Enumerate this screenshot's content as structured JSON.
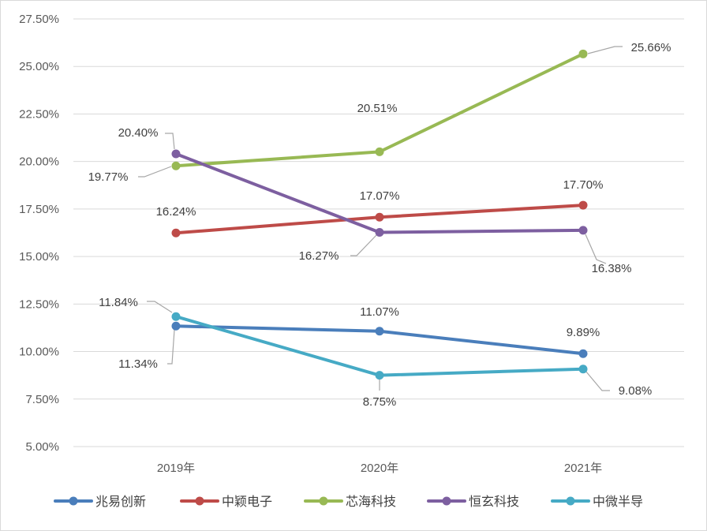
{
  "chart_data": {
    "type": "line",
    "title": "",
    "xlabel": "",
    "ylabel": "",
    "categories": [
      "2019年",
      "2020年",
      "2021年"
    ],
    "ylim": [
      5.0,
      27.5
    ],
    "ytick_values": [
      5.0,
      7.5,
      10.0,
      12.5,
      15.0,
      17.5,
      20.0,
      22.5,
      25.0,
      27.5
    ],
    "ytick_labels": [
      "5.00%",
      "7.50%",
      "10.00%",
      "12.50%",
      "15.00%",
      "17.50%",
      "20.00%",
      "22.50%",
      "25.00%",
      "27.50%"
    ],
    "grid": true,
    "legend_position": "bottom",
    "series": [
      {
        "name": "兆易创新",
        "color": "#4a7ebb",
        "values": [
          11.34,
          11.07,
          9.89
        ],
        "labels": [
          "11.34%",
          "11.07%",
          "9.89%"
        ]
      },
      {
        "name": "中颖电子",
        "color": "#be4b48",
        "values": [
          16.24,
          17.07,
          17.7
        ],
        "labels": [
          "16.24%",
          "17.07%",
          "17.70%"
        ]
      },
      {
        "name": "芯海科技",
        "color": "#98b954",
        "values": [
          19.77,
          20.51,
          25.66
        ],
        "labels": [
          "19.77%",
          "20.51%",
          "25.66%"
        ]
      },
      {
        "name": "恒玄科技",
        "color": "#7d5fa0",
        "values": [
          20.4,
          16.27,
          16.38
        ],
        "labels": [
          "20.40%",
          "16.27%",
          "16.38%"
        ]
      },
      {
        "name": "中微半导",
        "color": "#46aac5",
        "values": [
          11.84,
          8.75,
          9.08
        ],
        "labels": [
          "11.84%",
          "8.75%",
          "9.08%"
        ]
      }
    ]
  }
}
